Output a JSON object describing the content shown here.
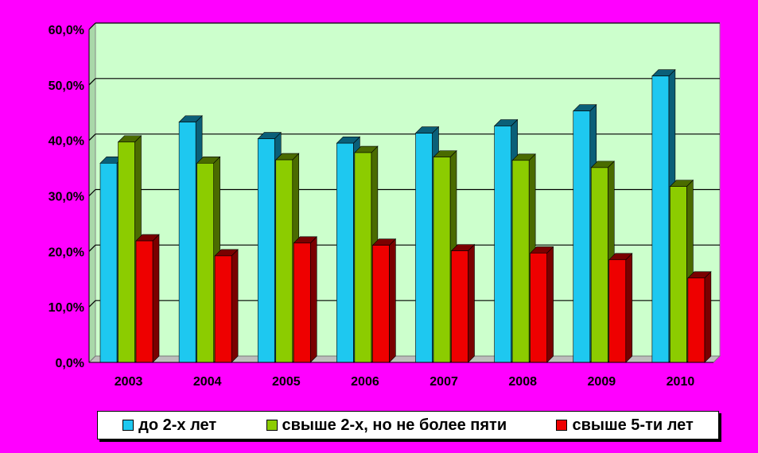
{
  "chart_data": {
    "type": "bar",
    "categories": [
      "2003",
      "2004",
      "2005",
      "2006",
      "2007",
      "2008",
      "2009",
      "2010"
    ],
    "series": [
      {
        "name": "до 2-х лет",
        "color": "#1ec8f0",
        "dark": "#0b5f78",
        "values": [
          35.9,
          43.3,
          40.3,
          39.5,
          41.3,
          42.6,
          45.3,
          51.6
        ]
      },
      {
        "name": "свыше 2-х, но не более пяти",
        "color": "#8ccc00",
        "dark": "#4a6b00",
        "values": [
          39.7,
          35.9,
          36.5,
          37.8,
          37.0,
          36.4,
          35.1,
          31.7
        ]
      },
      {
        "name": "свыше 5-ти лет",
        "color": "#ee0000",
        "dark": "#7a0000",
        "values": [
          21.9,
          19.2,
          21.5,
          21.1,
          20.1,
          19.7,
          18.5,
          15.2
        ]
      }
    ],
    "yticks": [
      "0,0%",
      "10,0%",
      "20,0%",
      "30,0%",
      "40,0%",
      "50,0%",
      "60,0%"
    ],
    "ylim": [
      0,
      60
    ],
    "grid": true,
    "legend_position": "bottom",
    "plot_background": "#ccffcc",
    "page_background": "#ff00ff"
  }
}
